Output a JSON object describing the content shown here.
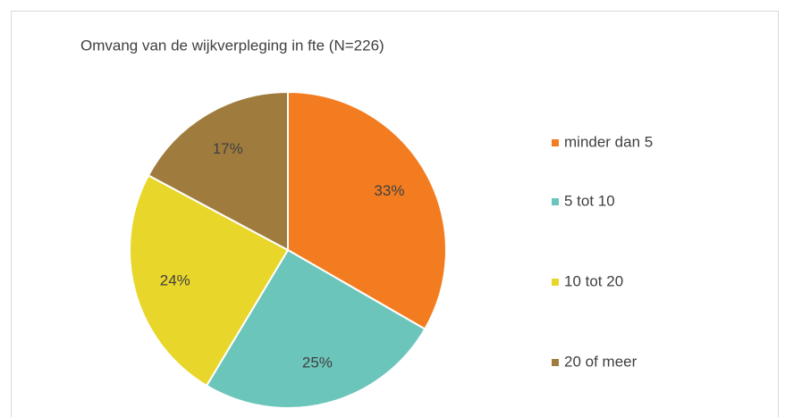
{
  "chart_data": {
    "type": "pie",
    "title": "Omvang van de wijkverpleging in fte (N=226)",
    "categories": [
      "minder dan 5",
      "5 tot 10",
      "10 tot 20",
      "20 of meer"
    ],
    "values": [
      33,
      25,
      24,
      17
    ],
    "value_labels": [
      "33%",
      "25%",
      "24%",
      "17%"
    ],
    "colors": [
      "#f47c20",
      "#6cc5bb",
      "#e9d62a",
      "#9f7c3d"
    ],
    "legend": "right"
  }
}
